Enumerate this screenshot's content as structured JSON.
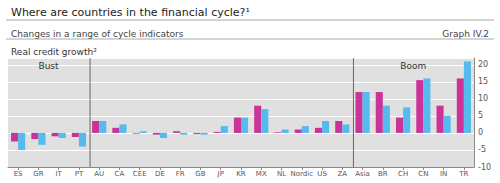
{
  "chart_data": {
    "type": "bar",
    "title": "Where are countries in the financial cycle?¹",
    "subtitle": "Changes in a range of cycle indicators",
    "annotations": [
      "Graph IV.2",
      "Real credit growth²",
      "Bust",
      "Boom"
    ],
    "categories": [
      "ES",
      "GR",
      "IT",
      "PT",
      "AU",
      "CA",
      "CEE",
      "DE",
      "FR",
      "GB",
      "JP",
      "KR",
      "MX",
      "NL",
      "Nordic",
      "US",
      "ZA",
      "Asia",
      "BR",
      "CH",
      "CN",
      "IN",
      "TR"
    ],
    "series": [
      {
        "color": "#cc3399",
        "values": [
          -2.5,
          -1.8,
          -1.0,
          -1.2,
          3.5,
          1.5,
          -0.2,
          -0.5,
          0.5,
          -0.3,
          0.3,
          4.5,
          8.0,
          0.2,
          1.0,
          1.5,
          3.5,
          12.0,
          12.0,
          4.5,
          15.5,
          8.0,
          16.0
        ]
      },
      {
        "color": "#55bbee",
        "values": [
          -5.0,
          -3.5,
          -1.5,
          -4.0,
          3.5,
          2.5,
          0.5,
          -1.5,
          -0.5,
          -0.5,
          2.0,
          4.5,
          7.0,
          1.0,
          2.0,
          3.5,
          2.5,
          12.0,
          8.0,
          7.5,
          16.0,
          5.0,
          21.0
        ]
      }
    ],
    "ylim": [
      -10,
      22
    ],
    "yticks": [
      -10,
      -5,
      0,
      5,
      10,
      15,
      20
    ],
    "grid": true
  }
}
